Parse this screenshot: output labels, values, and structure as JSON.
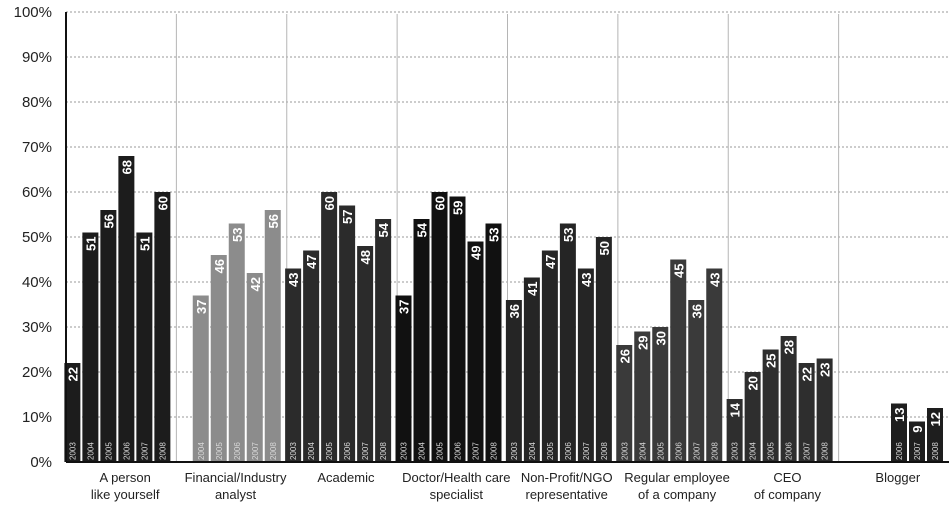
{
  "chart_data": {
    "type": "bar",
    "ylim": [
      0,
      100
    ],
    "yticks": [
      "0%",
      "10%",
      "20%",
      "30%",
      "40%",
      "50%",
      "60%",
      "70%",
      "80%",
      "90%",
      "100%"
    ],
    "grid": true,
    "groups": [
      {
        "label": [
          "A person",
          "like yourself"
        ],
        "color": "#1c1c1c",
        "years": [
          "2003",
          "2004",
          "2005",
          "2006",
          "2007",
          "2008"
        ],
        "values": [
          22,
          51,
          56,
          68,
          51,
          60
        ]
      },
      {
        "label": [
          "Financial/Industry",
          "analyst"
        ],
        "color": "#8c8c8c",
        "years": [
          "2004",
          "2005",
          "2006",
          "2007",
          "2008"
        ],
        "values": [
          37,
          46,
          53,
          42,
          56
        ]
      },
      {
        "label": [
          "Academic"
        ],
        "color": "#2b2b2b",
        "years": [
          "2003",
          "2004",
          "2005",
          "2006",
          "2007",
          "2008"
        ],
        "values": [
          43,
          47,
          60,
          57,
          48,
          54
        ]
      },
      {
        "label": [
          "Doctor/Health care",
          "specialist"
        ],
        "color": "#111111",
        "years": [
          "2003",
          "2004",
          "2005",
          "2006",
          "2007",
          "2008"
        ],
        "values": [
          37,
          54,
          60,
          59,
          49,
          53
        ]
      },
      {
        "label": [
          "Non-Profit/NGO",
          "representative"
        ],
        "color": "#252525",
        "years": [
          "2003",
          "2004",
          "2005",
          "2006",
          "2007",
          "2008"
        ],
        "values": [
          36,
          41,
          47,
          53,
          43,
          50
        ]
      },
      {
        "label": [
          "Regular employee",
          "of a company"
        ],
        "color": "#3a3a3a",
        "years": [
          "2003",
          "2004",
          "2005",
          "2006",
          "2007",
          "2008"
        ],
        "values": [
          26,
          29,
          30,
          45,
          36,
          43
        ]
      },
      {
        "label": [
          "CEO",
          "of company"
        ],
        "color": "#2e2e2e",
        "years": [
          "2003",
          "2004",
          "2005",
          "2006",
          "2007",
          "2008"
        ],
        "values": [
          14,
          20,
          25,
          28,
          22,
          23
        ]
      },
      {
        "label": [
          "Blogger"
        ],
        "color": "#1e1e1e",
        "years": [
          "2006",
          "2007",
          "2008"
        ],
        "values": [
          13,
          9,
          12
        ]
      }
    ]
  }
}
